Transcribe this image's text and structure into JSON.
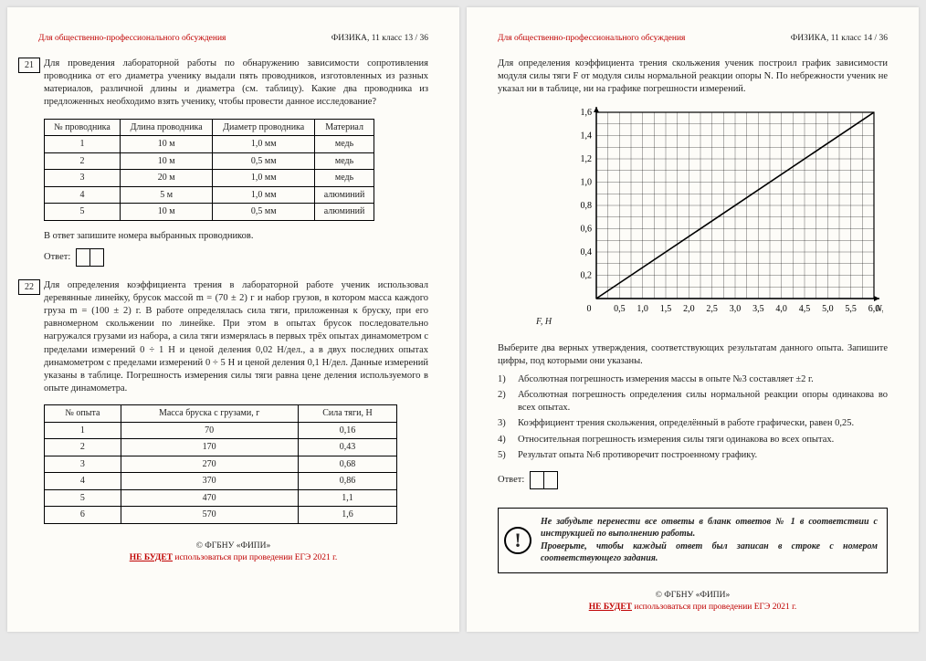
{
  "header": {
    "left": "Для общественно-профессионального обсуждения",
    "right13": "ФИЗИКА, 11 класс   13 / 36",
    "right14": "ФИЗИКА, 11 класс   14 / 36"
  },
  "q21": {
    "num": "21",
    "text": "Для проведения лабораторной работы по обнаружению зависимости сопротивления проводника от его диаметра ученику выдали пять проводников, изготовленных из разных материалов, различной длины и диаметра (см. таблицу). Какие два проводника из предложенных необходимо взять ученику, чтобы провести данное исследование?",
    "table": {
      "cols": [
        "№ проводника",
        "Длина проводника",
        "Диаметр проводника",
        "Материал"
      ],
      "rows": [
        [
          "1",
          "10 м",
          "1,0 мм",
          "медь"
        ],
        [
          "2",
          "10 м",
          "0,5 мм",
          "медь"
        ],
        [
          "3",
          "20 м",
          "1,0 мм",
          "медь"
        ],
        [
          "4",
          "5 м",
          "1,0 мм",
          "алюминий"
        ],
        [
          "5",
          "10 м",
          "0,5 мм",
          "алюминий"
        ]
      ]
    },
    "after": "В ответ запишите номера выбранных проводников.",
    "ansLabel": "Ответ:"
  },
  "q22": {
    "num": "22",
    "text": "Для определения коэффициента трения в лабораторной работе ученик использовал деревянные линейку, брусок массой m = (70 ± 2) г и набор грузов, в котором масса каждого груза m = (100 ± 2) г. В работе определялась сила тяги, приложенная к бруску, при его равномерном скольжении по линейке. При этом в опытах брусок последовательно нагружался грузами из набора, а сила тяги измерялась в первых трёх опытах динамометром с пределами измерений 0 ÷ 1 Н и ценой деления 0,02 Н/дел., а в двух последних опытах динамометром с пределами измерений 0 ÷ 5 Н и ценой деления 0,1 Н/дел. Данные измерений указаны в таблице. Погрешность измерения силы тяги равна цене деления используемого в опыте динамометра.",
    "table": {
      "cols": [
        "№ опыта",
        "Масса бруска с грузами, г",
        "Сила тяги, Н"
      ],
      "rows": [
        [
          "1",
          "70",
          "0,16"
        ],
        [
          "2",
          "170",
          "0,43"
        ],
        [
          "3",
          "270",
          "0,68"
        ],
        [
          "4",
          "370",
          "0,86"
        ],
        [
          "5",
          "470",
          "1,1"
        ],
        [
          "6",
          "570",
          "1,6"
        ]
      ]
    }
  },
  "p14": {
    "intro": "Для определения коэффициента трения скольжения ученик построил график зависимости модуля силы тяги F от модуля силы нормальной реакции опоры N. По небрежности ученик не указал ни в таблице, ни на графике погрешности измерений.",
    "chart": {
      "type": "line",
      "ylabel": "F, Н",
      "xlabel": "N, Н",
      "xlim": [
        0,
        6
      ],
      "ylim": [
        0,
        1.6
      ],
      "xtick_step": 0.5,
      "xtick_minor": 0.25,
      "ytick_step": 0.2,
      "ytick_minor": 0.1,
      "xtick_labels": [
        "0",
        "0,5",
        "1,0",
        "1,5",
        "2,0",
        "2,5",
        "3,0",
        "3,5",
        "4,0",
        "4,5",
        "5,0",
        "5,5",
        "6,0"
      ],
      "ytick_labels": [
        "0,2",
        "0,4",
        "0,6",
        "0,8",
        "1,0",
        "1,2",
        "1,4",
        "1,6"
      ],
      "line": {
        "x": [
          0,
          6
        ],
        "y": [
          0,
          1.6
        ],
        "color": "#000000",
        "width": 1.6
      },
      "grid_color": "#000000",
      "grid_width": 0.6,
      "background": "#fdfcf8",
      "fontsize": 10
    },
    "choose": "Выберите два верных утверждения, соответствующих результатам данного опыта. Запишите цифры, под которыми они указаны.",
    "opts": [
      "Абсолютная погрешность измерения массы в опыте №3 составляет ±2 г.",
      "Абсолютная погрешность определения силы нормальной реакции опоры одинакова во всех опытах.",
      "Коэффициент трения скольжения, определённый в работе графически, равен 0,25.",
      "Относительная погрешность измерения силы тяги одинакова во всех опытах.",
      "Результат опыта №6 противоречит построенному графику."
    ],
    "ansLabel": "Ответ:",
    "notice": "Не забудьте перенести все ответы в бланк ответов № 1 в соответствии с инструкцией по выполнению работы.\nПроверьте, чтобы каждый ответ был записан в строке с номером соответствующего задания."
  },
  "footer": {
    "copy": "© ФГБНУ «ФИПИ»",
    "red_b": "НЕ БУДЕТ",
    "red_rest": " использоваться при проведении ЕГЭ 2021 г."
  }
}
